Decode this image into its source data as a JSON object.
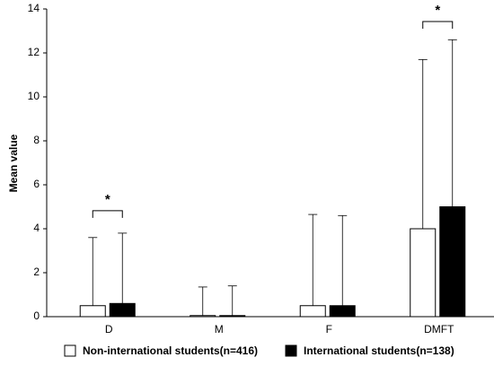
{
  "chart_data": {
    "type": "bar",
    "y_label": "Mean value",
    "categories": [
      "D",
      "M",
      "F",
      "DMFT"
    ],
    "series": [
      {
        "name": "Non-international students(n=416)",
        "color": "#ffffff",
        "values": [
          0.5,
          0.05,
          0.5,
          4.0
        ],
        "errors": [
          3.1,
          1.3,
          4.15,
          7.7
        ]
      },
      {
        "name": "International students(n=138)",
        "color": "#000000",
        "values": [
          0.6,
          0.05,
          0.5,
          5.0
        ],
        "errors": [
          3.2,
          1.35,
          4.1,
          7.6
        ]
      }
    ],
    "annotations": [
      {
        "text": "*",
        "category": "D"
      },
      {
        "text": "*",
        "category": "DMFT"
      }
    ],
    "ylim": [
      0,
      14
    ],
    "yticks": [
      0,
      2,
      4,
      6,
      8,
      10,
      12,
      14
    ]
  }
}
